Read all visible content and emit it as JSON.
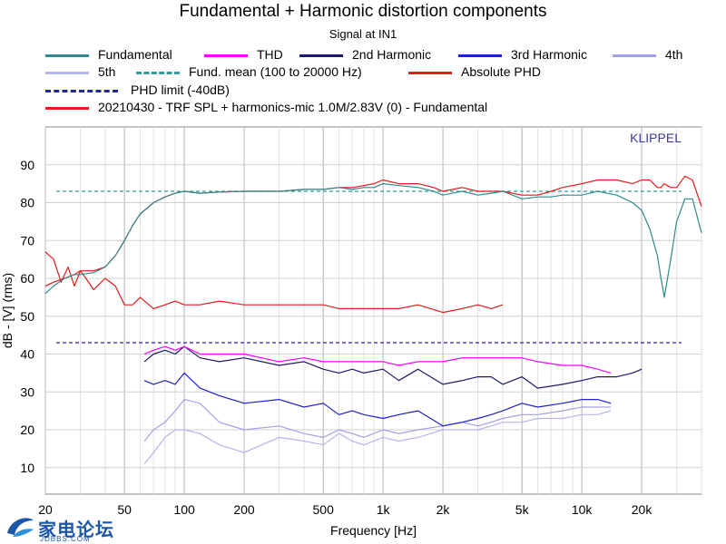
{
  "header": {
    "title": "Fundamental + Harmonic distortion components",
    "subtitle": "Signal at IN1"
  },
  "legend": [
    {
      "label": "Fundamental",
      "color": "#2e8b8b",
      "style": "solid"
    },
    {
      "label": "THD",
      "color": "#ff00ff",
      "style": "solid"
    },
    {
      "label": "2nd Harmonic",
      "color": "#1a1a6e",
      "style": "solid"
    },
    {
      "label": "3rd Harmonic",
      "color": "#1f1fcc",
      "style": "solid"
    },
    {
      "label": "4th",
      "color": "#a0a0e6",
      "style": "solid"
    },
    {
      "label": "5th",
      "color": "#b4b4ee",
      "style": "solid"
    },
    {
      "label": "Fund. mean (100 to 20000 Hz)",
      "color": "#2e9e9e",
      "style": "dashed"
    },
    {
      "label": "Absolute PHD",
      "color": "#e31b1b",
      "style": "solid"
    },
    {
      "label": "PHD limit (-40dB)",
      "color": "#2020c0",
      "style": "dashed"
    },
    {
      "label": "20210430 - TRF SPL + harmonics-mic 1.0M/2.83V (0) - Fundamental",
      "color": "#e31b1b",
      "style": "solid"
    }
  ],
  "chart_data": {
    "type": "line",
    "title": "Fundamental + Harmonic distortion components",
    "subtitle": "Signal at IN1",
    "xlabel": "Frequency [Hz]",
    "ylabel": "dB - [V] (rms)",
    "xscale": "log",
    "xlim": [
      20,
      40000
    ],
    "ylim": [
      3,
      100
    ],
    "xticks": [
      20,
      50,
      100,
      200,
      500,
      1000,
      2000,
      5000,
      10000,
      20000
    ],
    "xtick_labels": [
      "20",
      "50",
      "100",
      "200",
      "500",
      "1k",
      "2k",
      "5k",
      "10k",
      "20k"
    ],
    "yticks": [
      10,
      20,
      30,
      40,
      50,
      60,
      70,
      80,
      90
    ],
    "ytick_labels": [
      "10",
      "20",
      "30",
      "40",
      "50",
      "60",
      "70",
      "80",
      "90"
    ],
    "grid": true,
    "watermark": "KLIPPEL",
    "series": [
      {
        "name": "Fundamental",
        "color": "#2e8b8b",
        "x": [
          20,
          22,
          25,
          28,
          30,
          35,
          40,
          45,
          50,
          55,
          60,
          70,
          80,
          90,
          100,
          120,
          150,
          200,
          300,
          400,
          500,
          600,
          700,
          800,
          900,
          1000,
          1200,
          1500,
          1800,
          2000,
          2500,
          3000,
          3500,
          4000,
          5000,
          6000,
          7000,
          8000,
          10000,
          12000,
          15000,
          18000,
          20000,
          22000,
          24000,
          25000,
          26000,
          28000,
          30000,
          33000,
          36000,
          40000
        ],
        "y": [
          56,
          58,
          60,
          61,
          61,
          61.5,
          63,
          66,
          70,
          74,
          77,
          80,
          81.5,
          82.5,
          83,
          82.5,
          82.8,
          83,
          83,
          83.5,
          83.5,
          84,
          83.5,
          84,
          84,
          85,
          84.5,
          84,
          83,
          82,
          83,
          82,
          82.5,
          83,
          81,
          81.5,
          81.5,
          82,
          82,
          83,
          82,
          80,
          78,
          73,
          66,
          60,
          55,
          65,
          75,
          81,
          81,
          72
        ]
      },
      {
        "name": "Absolute PHD",
        "color": "#e31b1b",
        "x": [
          20,
          22,
          25,
          28,
          30,
          35,
          40,
          45,
          50,
          55,
          60,
          70,
          80,
          90,
          100,
          120,
          150,
          200,
          300,
          400,
          500,
          600,
          700,
          800,
          900,
          1000,
          1200,
          1500,
          1800,
          2000,
          2500,
          3000,
          3500,
          4000,
          5000,
          6000,
          7000,
          8000,
          10000,
          12000,
          15000,
          18000,
          20000,
          22000,
          24000,
          25000,
          26000,
          28000,
          30000,
          33000,
          36000,
          40000
        ],
        "y": [
          58,
          59,
          60,
          61,
          62,
          62,
          63,
          66,
          70,
          74,
          77,
          80,
          81.5,
          82.5,
          83,
          82.5,
          82.8,
          83,
          83,
          83.5,
          83.5,
          84,
          84,
          84.5,
          85,
          86,
          85,
          85,
          84,
          83,
          84,
          83,
          83,
          83,
          82,
          82,
          83,
          84,
          85,
          86,
          86,
          85,
          86,
          86,
          84,
          84,
          85,
          84,
          84,
          87,
          86,
          79
        ]
      },
      {
        "name": "20210430 - TRF SPL + harmonics-mic 1.0M/2.83V (0) - Fundamental",
        "color": "#e31b1b",
        "x": [
          20,
          22,
          24,
          26,
          28,
          30,
          32,
          35,
          40,
          45,
          50,
          55,
          60,
          70,
          80,
          90,
          100,
          120,
          150,
          200,
          300,
          400,
          500,
          600,
          800,
          1000,
          1200,
          1500,
          2000,
          2500,
          3000,
          3500,
          4000
        ],
        "y": [
          67,
          65,
          59,
          63,
          58,
          62,
          60,
          57,
          60,
          58,
          53,
          53,
          55,
          52,
          53,
          54,
          53,
          53,
          54,
          53,
          53,
          53,
          53,
          52,
          52,
          52,
          52,
          53,
          51,
          52,
          53,
          52,
          53
        ]
      },
      {
        "name": "THD",
        "color": "#ff00ff",
        "x": [
          63,
          70,
          80,
          90,
          100,
          120,
          150,
          200,
          300,
          400,
          500,
          600,
          700,
          800,
          1000,
          1200,
          1500,
          2000,
          2500,
          3000,
          3500,
          4000,
          5000,
          6000,
          8000,
          10000,
          12000,
          14000
        ],
        "y": [
          40,
          41,
          42,
          41,
          42,
          40,
          40,
          40,
          38,
          39,
          38,
          38,
          38,
          38,
          38,
          37,
          38,
          38,
          39,
          39,
          39,
          39,
          39,
          38,
          37,
          37,
          36,
          35
        ]
      },
      {
        "name": "2nd Harmonic",
        "color": "#1a1a6e",
        "x": [
          63,
          70,
          80,
          90,
          100,
          120,
          150,
          200,
          300,
          400,
          500,
          600,
          700,
          800,
          1000,
          1200,
          1500,
          2000,
          2500,
          3000,
          3500,
          4000,
          5000,
          6000,
          8000,
          10000,
          12000,
          15000,
          18000,
          20000
        ],
        "y": [
          38,
          40,
          41,
          40,
          42,
          39,
          38,
          39,
          37,
          38,
          36,
          35,
          36,
          35,
          36,
          33,
          36,
          32,
          33,
          34,
          34,
          32,
          34,
          31,
          32,
          33,
          34,
          34,
          35,
          36
        ]
      },
      {
        "name": "3rd Harmonic",
        "color": "#1f1fcc",
        "x": [
          63,
          70,
          80,
          90,
          100,
          120,
          150,
          200,
          300,
          400,
          500,
          600,
          700,
          800,
          1000,
          1200,
          1500,
          2000,
          2500,
          3000,
          3500,
          4000,
          5000,
          6000,
          8000,
          10000,
          12000,
          14000
        ],
        "y": [
          33,
          32,
          33,
          32,
          35,
          31,
          29,
          27,
          28,
          26,
          27,
          24,
          25,
          24,
          23,
          24,
          25,
          21,
          22,
          23,
          24,
          25,
          27,
          26,
          27,
          28,
          28,
          27
        ]
      },
      {
        "name": "4th",
        "color": "#a0a0e6",
        "x": [
          63,
          70,
          80,
          90,
          100,
          120,
          150,
          200,
          300,
          400,
          500,
          600,
          700,
          800,
          1000,
          1200,
          1500,
          2000,
          2500,
          3000,
          3500,
          4000,
          5000,
          6000,
          8000,
          10000,
          12000,
          14000
        ],
        "y": [
          17,
          20,
          22,
          25,
          28,
          27,
          22,
          20,
          21,
          19,
          18,
          20,
          19,
          18,
          20,
          19,
          20,
          21,
          22,
          21,
          22,
          23,
          24,
          24,
          25,
          26,
          26,
          26
        ]
      },
      {
        "name": "5th",
        "color": "#b4b4ee",
        "x": [
          63,
          70,
          80,
          90,
          100,
          120,
          150,
          200,
          300,
          400,
          500,
          600,
          700,
          800,
          1000,
          1200,
          1500,
          2000,
          2500,
          3000,
          3500,
          4000,
          5000,
          6000,
          8000,
          10000,
          12000,
          14000
        ],
        "y": [
          11,
          14,
          18,
          20,
          20,
          19,
          16,
          14,
          18,
          17,
          16,
          19,
          17,
          16,
          18,
          17,
          18,
          20,
          20,
          20,
          21,
          22,
          22,
          23,
          23,
          24,
          24,
          25
        ]
      }
    ],
    "reference_lines": [
      {
        "name": "Fund. mean (100 to 20000 Hz)",
        "y": 83,
        "color": "#2e9e9e",
        "style": "dashed"
      },
      {
        "name": "PHD limit (-40dB)",
        "y": 43,
        "color": "#2020c0",
        "style": "dashed"
      }
    ]
  },
  "watermark_logo": {
    "text": "家电论坛",
    "subtext": "JDBBS.COM",
    "color": "#1b56a8"
  }
}
